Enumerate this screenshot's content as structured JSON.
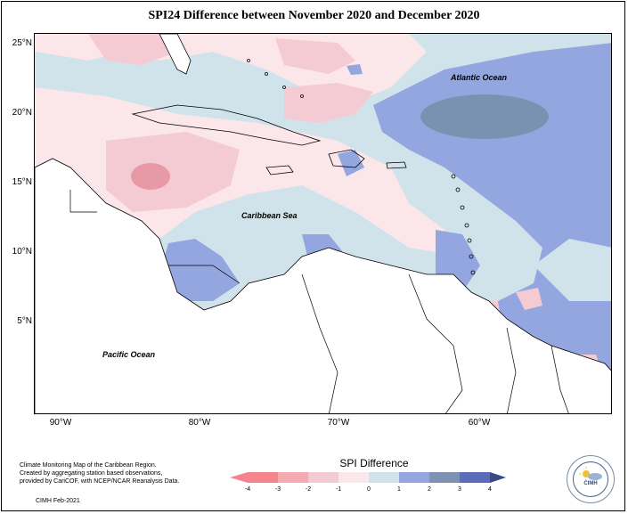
{
  "title": "SPI24 Difference between November 2020 and December 2020",
  "map": {
    "lat_labels": [
      "25°N",
      "20°N",
      "15°N",
      "10°N",
      "5°N"
    ],
    "lon_labels": [
      "90°W",
      "80°W",
      "70°W",
      "60°W"
    ],
    "ocean_labels": {
      "atlantic": "Atlantic Ocean",
      "caribbean": "Caribbean Sea",
      "pacific": "Pacific Ocean"
    }
  },
  "legend": {
    "title": "SPI Difference",
    "ticks": [
      "-4",
      "-3",
      "-2",
      "-1",
      "0",
      "1",
      "2",
      "3",
      "4"
    ],
    "colors": [
      "#f5848c",
      "#f4aab0",
      "#f4cbd2",
      "#fbe6ea",
      "#d1e3ea",
      "#93a6e0",
      "#7d92b0",
      "#5b6cb8"
    ]
  },
  "caption": {
    "lines": [
      "Climate Monitoring Map of the Caribbean Region.",
      "Created by aggregating station based observations,",
      "provided by CariCOF, with NCEP/NCAR Reanalysis Data."
    ],
    "credit": "CIMH Feb-2021"
  },
  "logo": {
    "text": "CIMH",
    "icon": "cimh-logo-icon"
  }
}
